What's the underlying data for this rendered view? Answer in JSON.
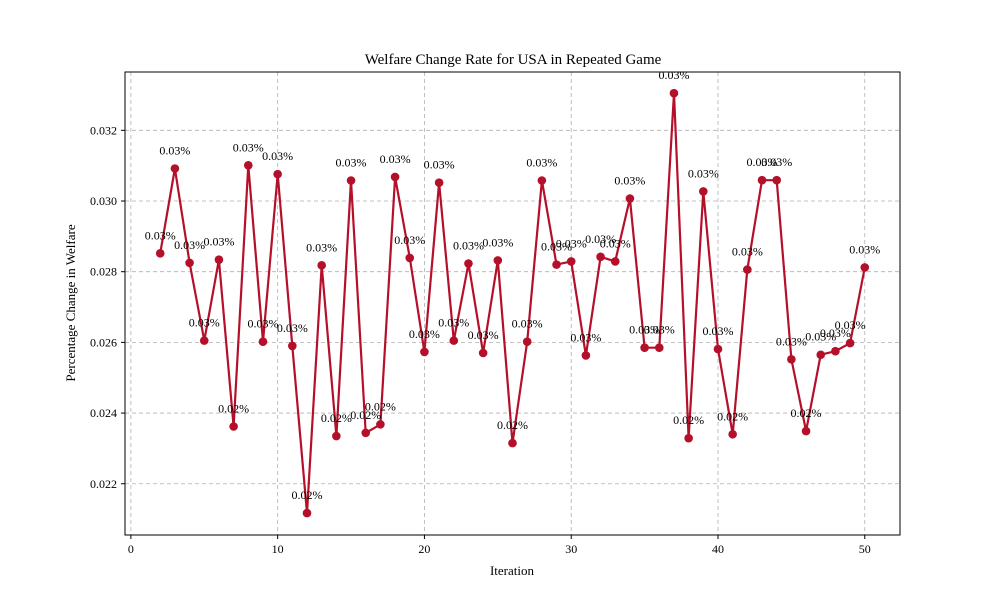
{
  "chart_data": {
    "type": "line",
    "title": "Welfare Change Rate for USA in Repeated Game",
    "xlabel": "Iteration",
    "ylabel": "Percentage Change in Welfare",
    "xlim": [
      -0.4,
      52.4
    ],
    "ylim": [
      0.02055,
      0.03365
    ],
    "xticks": [
      0,
      10,
      20,
      30,
      40,
      50
    ],
    "yticks": [
      0.022,
      0.024,
      0.026,
      0.028,
      0.03,
      0.032
    ],
    "ytick_labels": [
      "0.022",
      "0.024",
      "0.026",
      "0.028",
      "0.030",
      "0.032"
    ],
    "grid": true,
    "color": "#b5102a",
    "series": [
      {
        "x": [
          2,
          3,
          4,
          5,
          6,
          7,
          8,
          9,
          10,
          11,
          12,
          13,
          14,
          15,
          16,
          17,
          18,
          19,
          20,
          21,
          22,
          23,
          24,
          25,
          26,
          27,
          28,
          29,
          30,
          31,
          32,
          33,
          34,
          35,
          36,
          37,
          38,
          39,
          40,
          41,
          42,
          43,
          44,
          45,
          46,
          47,
          48,
          49,
          50
        ],
        "values": [
          0.02852,
          0.03092,
          0.02825,
          0.02605,
          0.02834,
          0.02362,
          0.03101,
          0.02602,
          0.03076,
          0.0259,
          0.02117,
          0.02818,
          0.02335,
          0.03058,
          0.02344,
          0.02368,
          0.03068,
          0.02839,
          0.02573,
          0.03052,
          0.02605,
          0.02823,
          0.0257,
          0.02832,
          0.02315,
          0.02602,
          0.03058,
          0.0282,
          0.02829,
          0.02563,
          0.02842,
          0.02829,
          0.03007,
          0.02585,
          0.02585,
          0.03305,
          0.02329,
          0.03027,
          0.02581,
          0.0234,
          0.02806,
          0.03059,
          0.03059,
          0.02552,
          0.02349,
          0.02565,
          0.02575,
          0.02598,
          0.02812
        ],
        "labels": [
          "0.03%",
          "0.03%",
          "0.03%",
          "0.03%",
          "0.03%",
          "0.02%",
          "0.03%",
          "0.03%",
          "0.03%",
          "0.03%",
          "0.02%",
          "0.03%",
          "0.02%",
          "0.03%",
          "0.02%",
          "0.02%",
          "0.03%",
          "0.03%",
          "0.03%",
          "0.03%",
          "0.03%",
          "0.03%",
          "0.03%",
          "0.03%",
          "0.02%",
          "0.03%",
          "0.03%",
          "0.03%",
          "0.03%",
          "0.03%",
          "0.03%",
          "0.03%",
          "0.03%",
          "0.03%",
          "0.03%",
          "0.03%",
          "0.02%",
          "0.03%",
          "0.03%",
          "0.02%",
          "0.03%",
          "0.03%",
          "0.03%",
          "0.03%",
          "0.02%",
          "0.03%",
          "0.03%",
          "0.03%",
          "0.03%"
        ]
      }
    ]
  }
}
